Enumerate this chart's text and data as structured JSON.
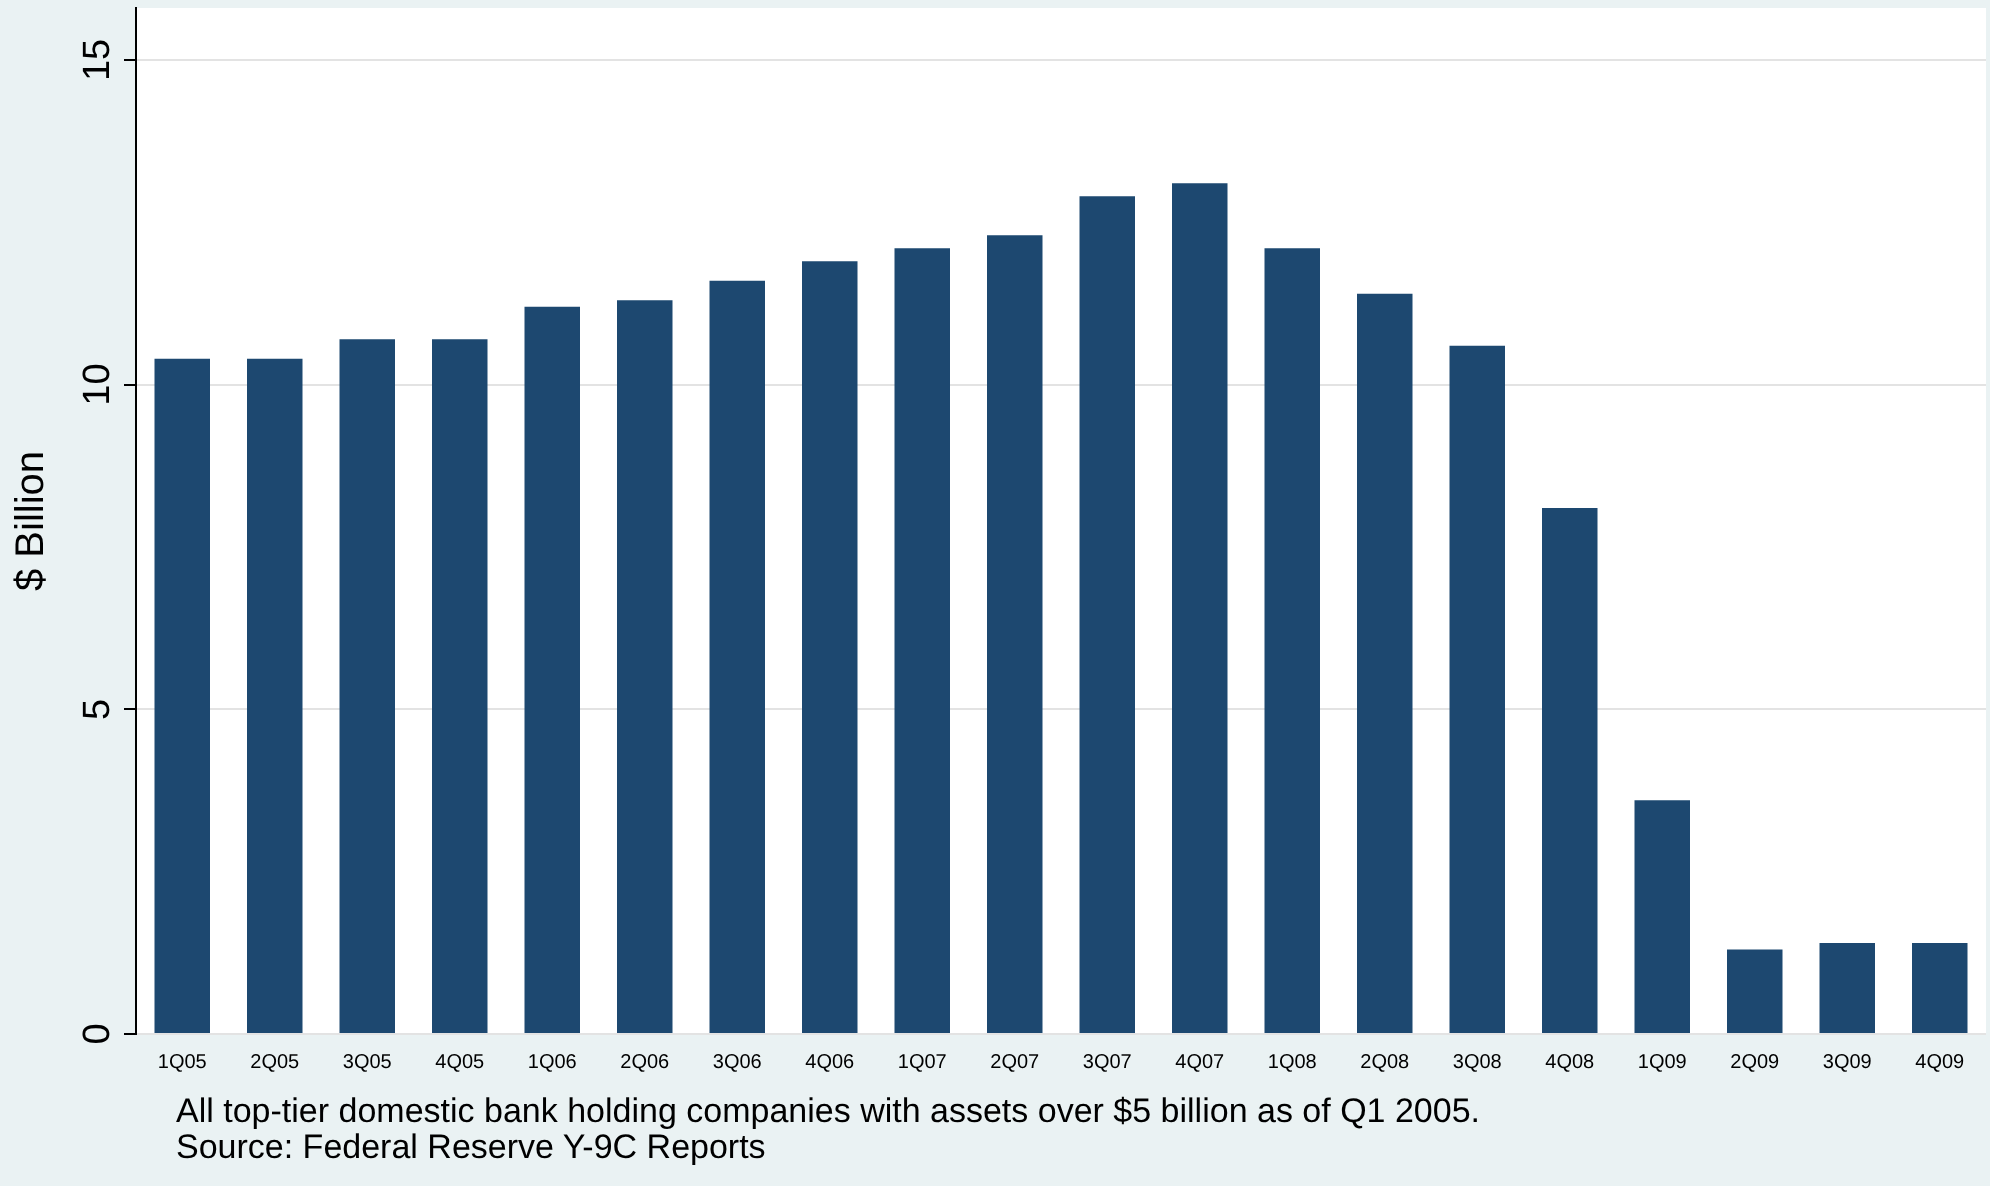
{
  "chart_data": {
    "type": "bar",
    "ylabel": "$ Billion",
    "categories": [
      "1Q05",
      "2Q05",
      "3Q05",
      "4Q05",
      "1Q06",
      "2Q06",
      "3Q06",
      "4Q06",
      "1Q07",
      "2Q07",
      "3Q07",
      "4Q07",
      "1Q08",
      "2Q08",
      "3Q08",
      "4Q08",
      "1Q09",
      "2Q09",
      "3Q09",
      "4Q09"
    ],
    "values": [
      10.4,
      10.4,
      10.7,
      10.7,
      11.2,
      11.3,
      11.6,
      11.9,
      12.1,
      12.3,
      12.9,
      13.1,
      12.1,
      11.4,
      10.6,
      8.1,
      3.6,
      1.3,
      1.4,
      1.4
    ],
    "color": "#1d4870",
    "ylim": [
      0,
      15.8
    ],
    "yticks": [
      0,
      5,
      10,
      15
    ],
    "grid": "y",
    "legend": false,
    "annotations": [
      "All top-tier domestic bank holding companies with assets over $5 billion as of Q1 2005.",
      "Source: Federal Reserve Y-9C Reports"
    ]
  }
}
